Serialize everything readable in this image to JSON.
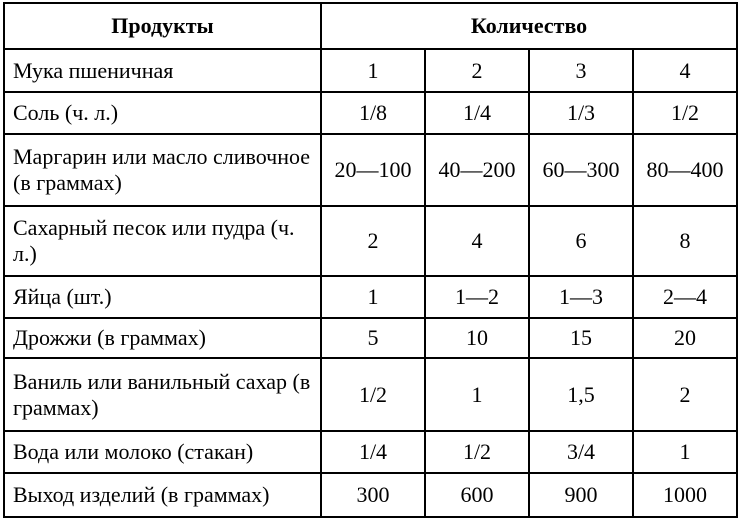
{
  "header": {
    "products": "Продукты",
    "quantity": "Количество"
  },
  "rows": [
    {
      "name": "Мука пшеничная",
      "values": [
        "1",
        "2",
        "3",
        "4"
      ]
    },
    {
      "name": "Соль (ч. л.)",
      "values": [
        "1/8",
        "1/4",
        "1/3",
        "1/2"
      ]
    },
    {
      "name": "Маргарин или масло сливочное (в граммах)",
      "values": [
        "20—100",
        "40—200",
        "60—300",
        "80—400"
      ]
    },
    {
      "name": "Сахарный песок или пудра (ч. л.)",
      "values": [
        "2",
        "4",
        "6",
        "8"
      ]
    },
    {
      "name": "Яйца (шт.)",
      "values": [
        "1",
        "1—2",
        "1—3",
        "2—4"
      ]
    },
    {
      "name": "Дрожжи (в граммах)",
      "values": [
        "5",
        "10",
        "15",
        "20"
      ]
    },
    {
      "name": "Ваниль или ванильный сахар (в граммах)",
      "values": [
        "1/2",
        "1",
        "1,5",
        "2"
      ]
    },
    {
      "name": "Вода или молоко (стакан)",
      "values": [
        "1/4",
        "1/2",
        "3/4",
        "1"
      ]
    },
    {
      "name": "Выход изделий (в граммах)",
      "values": [
        "300",
        "600",
        "900",
        "1000"
      ]
    }
  ]
}
